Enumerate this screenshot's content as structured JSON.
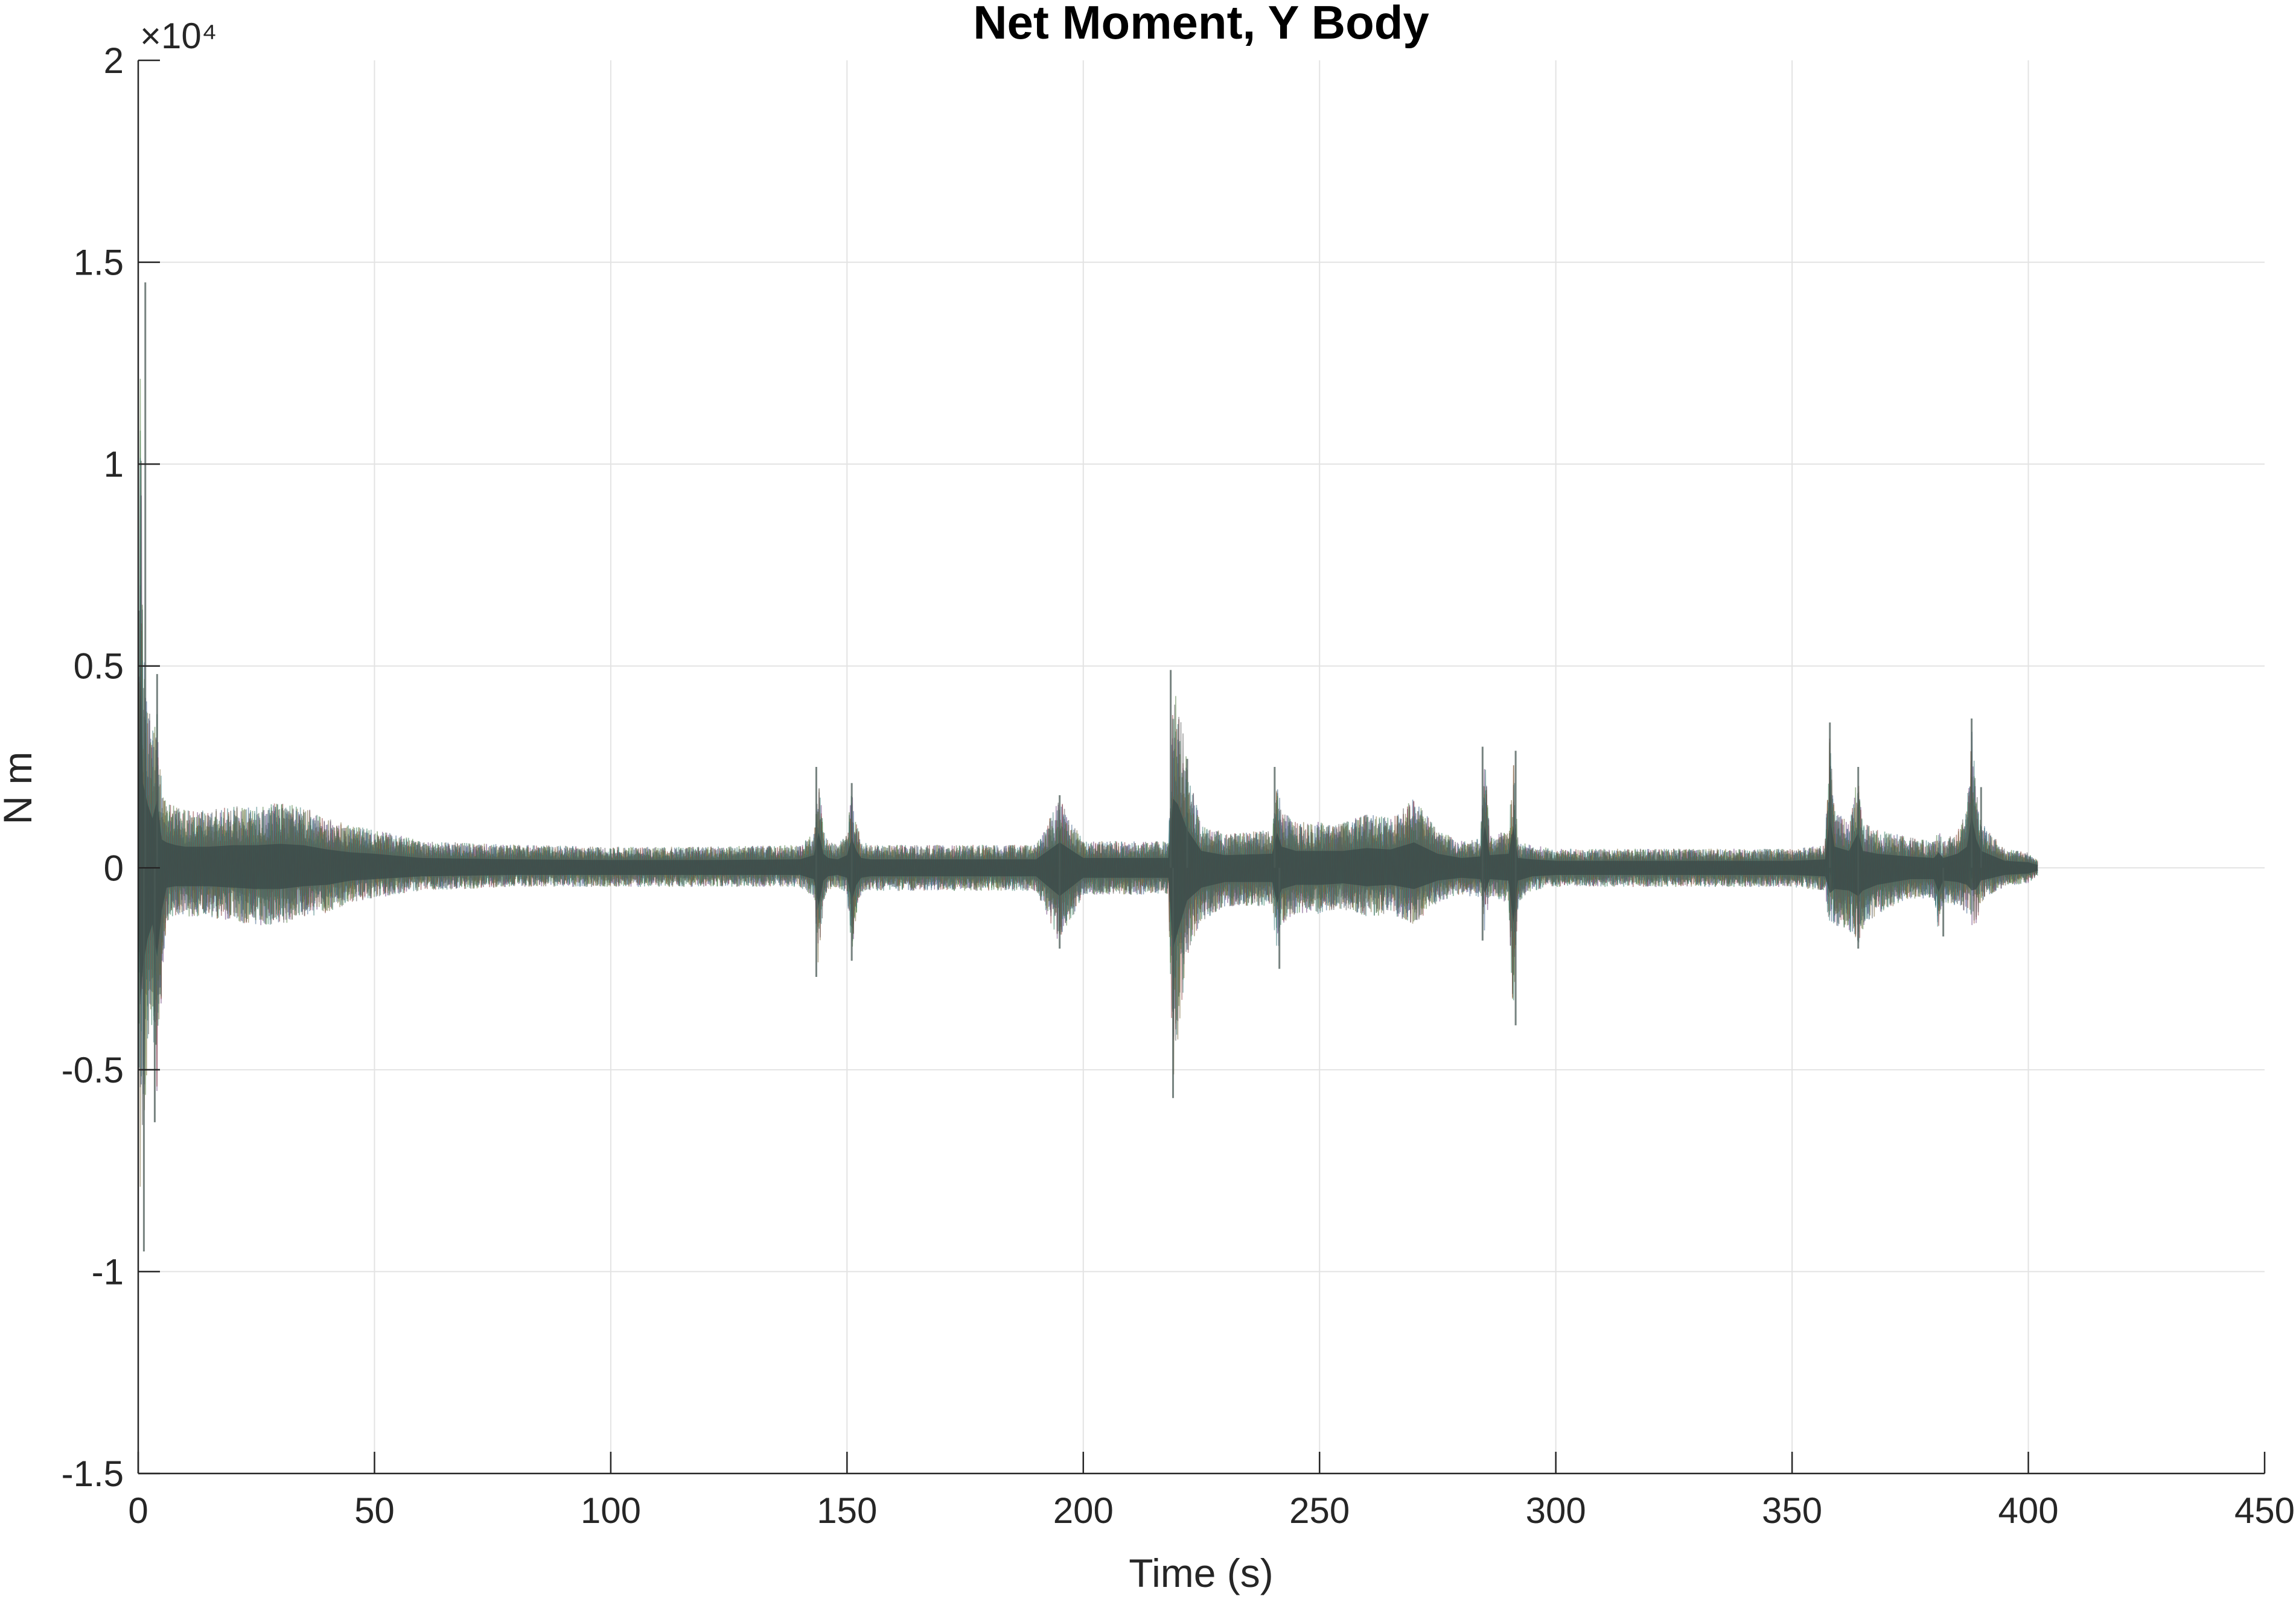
{
  "chart_data": {
    "type": "line",
    "title": "Net Moment, Y Body",
    "xlabel": "Time (s)",
    "ylabel": "N m",
    "y_exponent_label": "×10⁴",
    "y_scale_factor": 10000,
    "xlim": [
      0,
      450
    ],
    "ylim": [
      -15000,
      20000
    ],
    "xticks": [
      0,
      50,
      100,
      150,
      200,
      250,
      300,
      350,
      400,
      450
    ],
    "xtick_labels": [
      "0",
      "50",
      "100",
      "150",
      "200",
      "250",
      "300",
      "350",
      "400",
      "450"
    ],
    "yticks": [
      -15000,
      -10000,
      -5000,
      0,
      5000,
      10000,
      15000,
      20000
    ],
    "ytick_labels": [
      "-1.5",
      "-1",
      "-0.5",
      "0",
      "0.5",
      "1",
      "1.5",
      "2"
    ],
    "grid": true,
    "legend": "none",
    "series_note": "many overlaid multicolor Monte Carlo traces",
    "colors": [
      "#2e7d5b",
      "#6a3d7a",
      "#3a5f8a",
      "#8a3a3a",
      "#4a7a3a",
      "#7a6a3a",
      "#3a7a7a",
      "#555555"
    ],
    "envelope": {
      "x": [
        0,
        0.5,
        1,
        2,
        3,
        4,
        5,
        6,
        8,
        10,
        15,
        20,
        25,
        30,
        35,
        40,
        45,
        50,
        60,
        70,
        80,
        100,
        120,
        140,
        143,
        144,
        145,
        146,
        148,
        150,
        151,
        152,
        153,
        155,
        160,
        170,
        180,
        190,
        195,
        200,
        210,
        218,
        219,
        220,
        222,
        225,
        230,
        240,
        241,
        242,
        245,
        250,
        255,
        260,
        265,
        270,
        275,
        280,
        284,
        285,
        286,
        290,
        291,
        292,
        295,
        300,
        310,
        320,
        330,
        340,
        350,
        357,
        358,
        359,
        362,
        364,
        365,
        368,
        375,
        380,
        381,
        382,
        385,
        387,
        388,
        389,
        390,
        395,
        400,
        402
      ],
      "upper": [
        3000,
        14500,
        6000,
        4500,
        3500,
        4800,
        2000,
        1800,
        1600,
        1500,
        1500,
        1600,
        1600,
        1700,
        1600,
        1300,
        1100,
        1000,
        700,
        650,
        600,
        550,
        550,
        600,
        900,
        2500,
        1000,
        700,
        600,
        900,
        2100,
        1200,
        700,
        600,
        600,
        600,
        600,
        600,
        1800,
        700,
        700,
        700,
        4900,
        4500,
        2700,
        1200,
        900,
        1000,
        2500,
        1500,
        1200,
        1200,
        1200,
        1400,
        1300,
        1800,
        1000,
        700,
        800,
        3000,
        900,
        1000,
        2900,
        700,
        600,
        500,
        500,
        500,
        500,
        500,
        500,
        600,
        3600,
        1500,
        1200,
        2500,
        1200,
        1000,
        800,
        700,
        1100,
        700,
        1000,
        1500,
        3700,
        2000,
        1200,
        500,
        400,
        200
      ],
      "lower": [
        -3000,
        -9500,
        -7000,
        -5000,
        -4000,
        -6300,
        -3000,
        -1400,
        -1300,
        -1300,
        -1300,
        -1400,
        -1500,
        -1500,
        -1300,
        -1200,
        -900,
        -800,
        -600,
        -550,
        -500,
        -500,
        -500,
        -500,
        -800,
        -2700,
        -900,
        -600,
        -500,
        -700,
        -2300,
        -1200,
        -700,
        -600,
        -600,
        -600,
        -600,
        -600,
        -2000,
        -700,
        -700,
        -700,
        -5700,
        -4500,
        -2300,
        -1400,
        -1000,
        -1000,
        -2500,
        -1500,
        -1200,
        -1200,
        -1100,
        -1300,
        -1200,
        -1500,
        -900,
        -700,
        -800,
        -1800,
        -800,
        -900,
        -3900,
        -900,
        -600,
        -500,
        -500,
        -500,
        -500,
        -500,
        -500,
        -600,
        -1800,
        -1500,
        -1600,
        -2000,
        -1600,
        -1200,
        -800,
        -800,
        -1700,
        -900,
        -1000,
        -1200,
        -1600,
        -1500,
        -900,
        -500,
        -400,
        -200
      ]
    },
    "spikes": [
      {
        "x": 1.5,
        "y": 14500
      },
      {
        "x": 1.2,
        "y": -9500
      },
      {
        "x": 4,
        "y": 4800
      },
      {
        "x": 3.5,
        "y": -6300
      },
      {
        "x": 143.5,
        "y": 2500
      },
      {
        "x": 143.5,
        "y": -2700
      },
      {
        "x": 151,
        "y": 2100
      },
      {
        "x": 151,
        "y": -2300
      },
      {
        "x": 195,
        "y": 1800
      },
      {
        "x": 195,
        "y": -2000
      },
      {
        "x": 218.5,
        "y": 4900
      },
      {
        "x": 219,
        "y": -5700
      },
      {
        "x": 222,
        "y": 2700
      },
      {
        "x": 240.5,
        "y": 2500
      },
      {
        "x": 241.5,
        "y": -2500
      },
      {
        "x": 284.5,
        "y": 3000
      },
      {
        "x": 284.5,
        "y": -1800
      },
      {
        "x": 291.5,
        "y": 2900
      },
      {
        "x": 291.5,
        "y": -3900
      },
      {
        "x": 358,
        "y": 3600
      },
      {
        "x": 364,
        "y": 2500
      },
      {
        "x": 364,
        "y": -2000
      },
      {
        "x": 382,
        "y": -1700
      },
      {
        "x": 388,
        "y": 3700
      },
      {
        "x": 390,
        "y": 2000
      }
    ]
  }
}
